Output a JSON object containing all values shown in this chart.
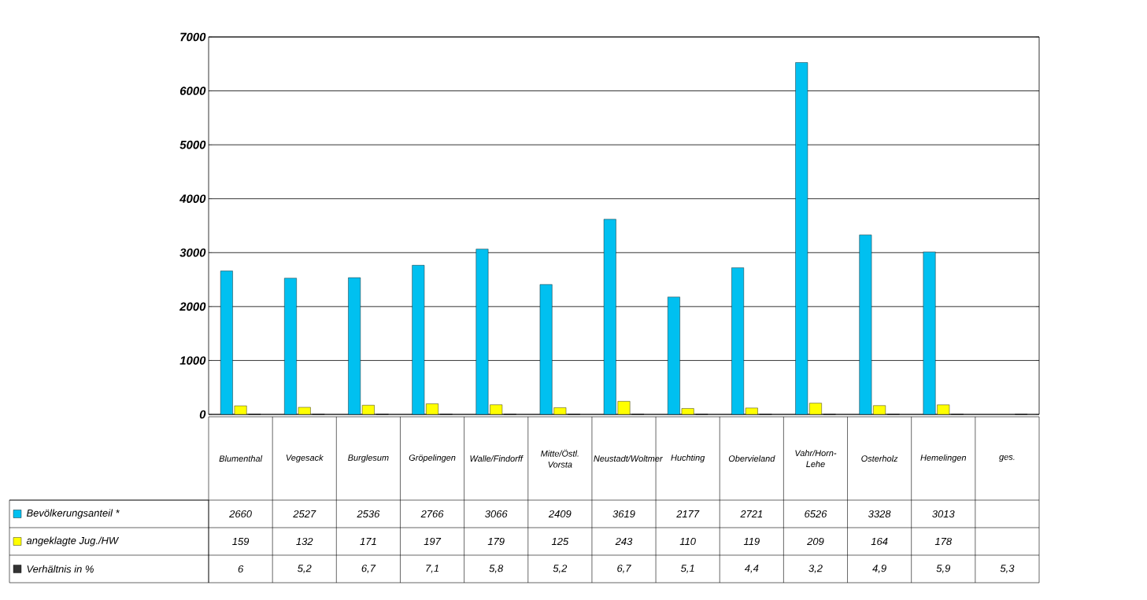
{
  "chart_data": {
    "type": "bar",
    "categories": [
      "Blumenthal",
      "Vegesack",
      "Burglesum",
      "Gröpelingen",
      "Walle/Findorff",
      "Mitte/Östl. Vorsta",
      "Neustadt/Woltmer",
      "Huchting",
      "Obervieland",
      "Vahr/Horn-Lehe",
      "Osterholz",
      "Hemelingen",
      "ges."
    ],
    "series": [
      {
        "name": "Bevölkerungsanteil *",
        "color": "#00c0f0",
        "values": [
          2660,
          2527,
          2536,
          2766,
          3066,
          2409,
          3619,
          2177,
          2721,
          6526,
          3328,
          3013,
          null
        ],
        "value_labels": [
          "2660",
          "2527",
          "2536",
          "2766",
          "3066",
          "2409",
          "3619",
          "2177",
          "2721",
          "6526",
          "3328",
          "3013",
          null
        ]
      },
      {
        "name": "angeklagte Jug./HW",
        "color": "#ffff00",
        "values": [
          159,
          132,
          171,
          197,
          179,
          125,
          243,
          110,
          119,
          209,
          164,
          178,
          null
        ],
        "value_labels": [
          "159",
          "132",
          "171",
          "197",
          "179",
          "125",
          "243",
          "110",
          "119",
          "209",
          "164",
          "178",
          null
        ]
      },
      {
        "name": "Verhältnis in %",
        "color": "#333333",
        "values": [
          6,
          5.2,
          6.7,
          7.1,
          5.8,
          5.2,
          6.7,
          5.1,
          4.4,
          3.2,
          4.9,
          5.9,
          5.3
        ],
        "value_labels": [
          "6",
          "5,2",
          "6,7",
          "7,1",
          "5,8",
          "5,2",
          "6,7",
          "5,1",
          "4,4",
          "3,2",
          "4,9",
          "5,9",
          "5,3"
        ]
      }
    ],
    "ylim": [
      0,
      7000
    ],
    "yticks": [
      0,
      1000,
      2000,
      3000,
      4000,
      5000,
      6000,
      7000
    ],
    "grid": "y",
    "legend": "bottom left"
  }
}
